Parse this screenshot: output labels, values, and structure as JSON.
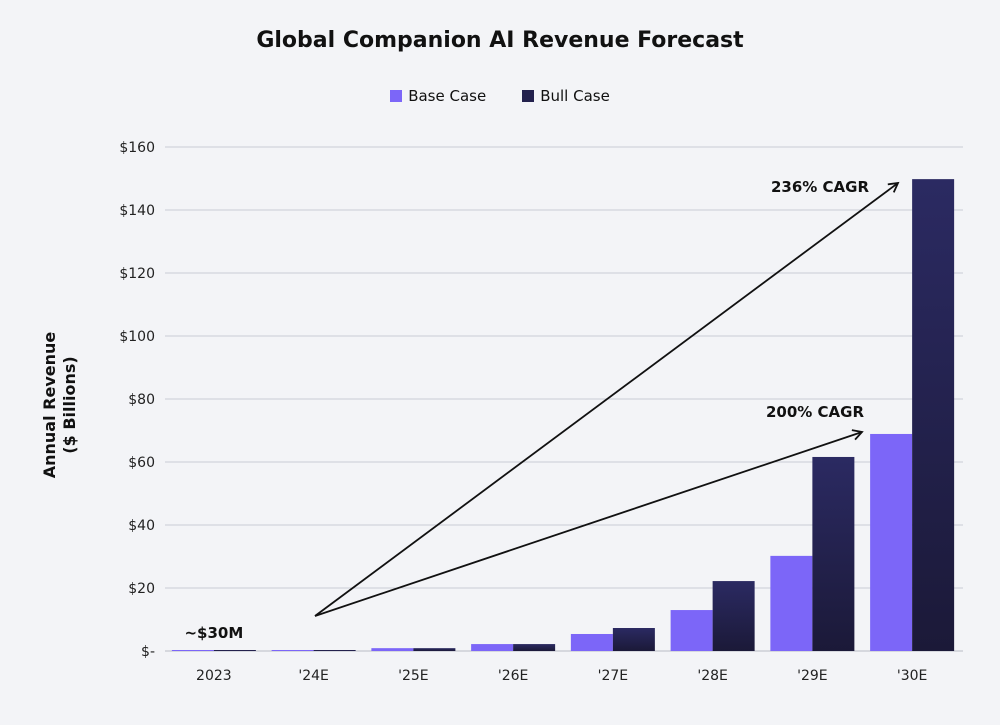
{
  "chart_data": {
    "type": "bar",
    "title": "Global Companion AI Revenue Forecast",
    "ylabel": "Annual Revenue ($ Billions)",
    "ylabel_lines": [
      "Annual Revenue",
      "($ Billions)"
    ],
    "xlabel": "",
    "categories": [
      "2023",
      "'24E",
      "'25E",
      "'26E",
      "'27E",
      "'28E",
      "'29E",
      "'30E"
    ],
    "series": [
      {
        "name": "Base Case",
        "color": "#7c66f8",
        "values": [
          0.03,
          0.1,
          0.9,
          2.2,
          5.4,
          13.0,
          30.2,
          68.9
        ]
      },
      {
        "name": "Bull Case",
        "color": "#23214d",
        "values": [
          0.03,
          0.1,
          0.9,
          2.2,
          7.3,
          22.2,
          61.6,
          149.8
        ]
      }
    ],
    "ylim": [
      0,
      160
    ],
    "yticks": [
      0,
      20,
      40,
      60,
      80,
      100,
      120,
      140,
      160
    ],
    "ytick_labels": [
      "$-",
      "$20",
      "$40",
      "$60",
      "$80",
      "$100",
      "$120",
      "$140",
      "$160"
    ],
    "grid": true,
    "legend_position": "top-center",
    "annotations": [
      {
        "text": "~$30M",
        "category": "2023"
      },
      {
        "text": "236% CAGR",
        "arrow_from": [
          "'24E",
          12
        ],
        "arrow_to": [
          "'30E",
          149
        ]
      },
      {
        "text": "200% CAGR",
        "arrow_from": [
          "'24E",
          12
        ],
        "arrow_to": [
          "'30E",
          70
        ]
      }
    ]
  }
}
